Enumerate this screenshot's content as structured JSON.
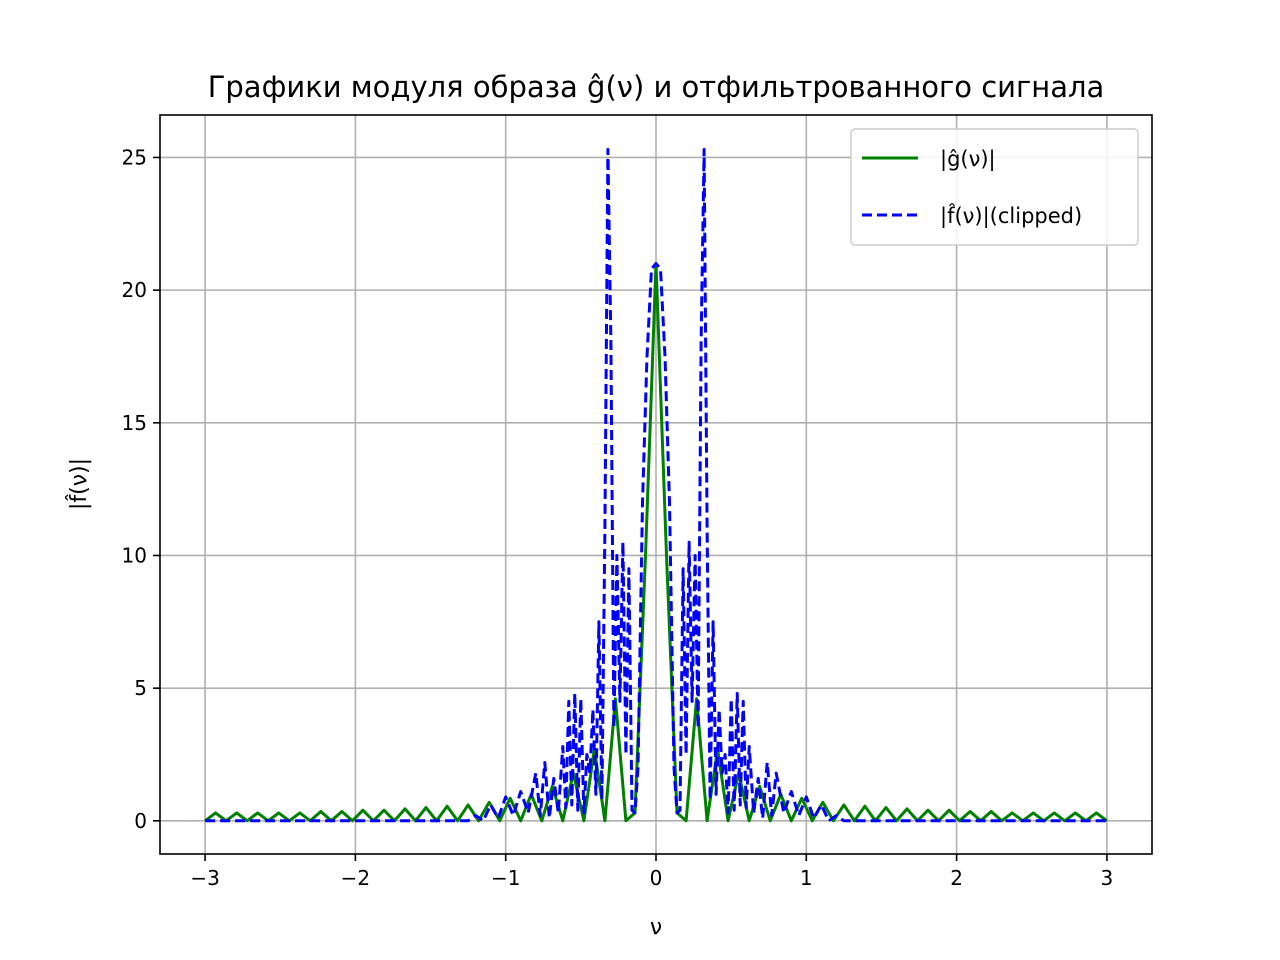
{
  "chart_data": {
    "type": "line",
    "title": "Графики модуля образа ĝ(ν) и отфильтрованного сигнала",
    "xlabel": "ν",
    "ylabel": "|f̂(ν)|",
    "xlim": [
      -3.3,
      3.3
    ],
    "ylim": [
      -1.25,
      26.6
    ],
    "xticks": [
      -3,
      -2,
      -1,
      0,
      1,
      2,
      3
    ],
    "xtick_labels": [
      "−3",
      "−2",
      "−1",
      "0",
      "1",
      "2",
      "3"
    ],
    "yticks": [
      0,
      5,
      10,
      15,
      20,
      25
    ],
    "ytick_labels": [
      "0",
      "5",
      "10",
      "15",
      "20",
      "25"
    ],
    "grid": true,
    "legend_position": "top-right",
    "series": [
      {
        "name": "|ĝ(ν)|",
        "color": "#008000",
        "style": "solid",
        "x": [
          -3.0,
          -2.93,
          -2.86,
          -2.79,
          -2.72,
          -2.65,
          -2.58,
          -2.51,
          -2.44,
          -2.37,
          -2.3,
          -2.23,
          -2.16,
          -2.09,
          -2.02,
          -1.95,
          -1.88,
          -1.81,
          -1.74,
          -1.67,
          -1.6,
          -1.53,
          -1.46,
          -1.39,
          -1.32,
          -1.25,
          -1.18,
          -1.11,
          -1.04,
          -0.97,
          -0.9,
          -0.83,
          -0.76,
          -0.69,
          -0.62,
          -0.55,
          -0.48,
          -0.41,
          -0.34,
          -0.27,
          -0.2,
          -0.14,
          -0.07,
          0.0,
          0.07,
          0.14,
          0.2,
          0.27,
          0.34,
          0.41,
          0.48,
          0.55,
          0.62,
          0.69,
          0.76,
          0.83,
          0.9,
          0.97,
          1.04,
          1.11,
          1.18,
          1.25,
          1.32,
          1.39,
          1.46,
          1.53,
          1.6,
          1.67,
          1.74,
          1.81,
          1.88,
          1.95,
          2.02,
          2.09,
          2.16,
          2.23,
          2.3,
          2.37,
          2.44,
          2.51,
          2.58,
          2.65,
          2.72,
          2.79,
          2.86,
          2.93,
          3.0
        ],
        "y": [
          0.0,
          0.3,
          0.0,
          0.3,
          0.0,
          0.3,
          0.0,
          0.3,
          0.0,
          0.3,
          0.0,
          0.35,
          0.0,
          0.35,
          0.0,
          0.4,
          0.0,
          0.4,
          0.0,
          0.45,
          0.0,
          0.5,
          0.0,
          0.55,
          0.0,
          0.6,
          0.0,
          0.7,
          0.0,
          0.85,
          0.0,
          1.0,
          0.0,
          1.3,
          0.0,
          1.8,
          0.0,
          2.7,
          0.0,
          4.6,
          0.0,
          0.3,
          10.0,
          21.0,
          10.0,
          0.3,
          0.0,
          4.6,
          0.0,
          2.7,
          0.0,
          1.8,
          0.0,
          1.3,
          0.0,
          1.0,
          0.0,
          0.85,
          0.0,
          0.7,
          0.0,
          0.6,
          0.0,
          0.55,
          0.0,
          0.5,
          0.0,
          0.45,
          0.0,
          0.4,
          0.0,
          0.4,
          0.0,
          0.35,
          0.0,
          0.35,
          0.0,
          0.3,
          0.0,
          0.3,
          0.0,
          0.3,
          0.0,
          0.3,
          0.0,
          0.3,
          0.0
        ]
      },
      {
        "name": "|f̂(ν)|(clipped)",
        "color": "#0000ff",
        "style": "dashed",
        "x": [
          -3.0,
          -1.25,
          -1.2,
          -1.15,
          -1.1,
          -1.05,
          -1.0,
          -0.95,
          -0.9,
          -0.85,
          -0.8,
          -0.77,
          -0.74,
          -0.71,
          -0.68,
          -0.65,
          -0.62,
          -0.6,
          -0.58,
          -0.56,
          -0.54,
          -0.52,
          -0.5,
          -0.48,
          -0.46,
          -0.44,
          -0.42,
          -0.4,
          -0.38,
          -0.36,
          -0.34,
          -0.32,
          -0.3,
          -0.28,
          -0.26,
          -0.24,
          -0.22,
          -0.2,
          -0.18,
          -0.16,
          -0.14,
          -0.12,
          -0.09,
          -0.06,
          -0.03,
          0.0,
          0.03,
          0.06,
          0.09,
          0.12,
          0.14,
          0.16,
          0.18,
          0.2,
          0.22,
          0.24,
          0.26,
          0.28,
          0.3,
          0.32,
          0.34,
          0.36,
          0.38,
          0.4,
          0.42,
          0.44,
          0.46,
          0.48,
          0.5,
          0.52,
          0.54,
          0.56,
          0.58,
          0.6,
          0.62,
          0.65,
          0.68,
          0.71,
          0.74,
          0.77,
          0.8,
          0.85,
          0.9,
          0.95,
          1.0,
          1.05,
          1.1,
          1.15,
          1.2,
          1.25,
          3.0
        ],
        "y": [
          0.0,
          0.0,
          0.2,
          0.0,
          0.6,
          0.1,
          0.9,
          0.2,
          1.1,
          0.3,
          1.8,
          0.2,
          2.2,
          0.1,
          1.6,
          0.3,
          2.8,
          0.5,
          4.5,
          0.6,
          4.8,
          0.4,
          4.6,
          0.3,
          2.5,
          1.8,
          4.2,
          1.0,
          7.5,
          0.8,
          11.0,
          25.3,
          18.0,
          3.5,
          10.0,
          4.5,
          10.5,
          2.5,
          9.5,
          0.4,
          0.3,
          2.0,
          12.0,
          17.5,
          20.8,
          21.0,
          20.8,
          17.5,
          12.0,
          2.0,
          0.3,
          0.4,
          9.5,
          2.5,
          10.5,
          4.5,
          10.0,
          3.5,
          18.0,
          25.3,
          11.0,
          0.8,
          7.5,
          1.0,
          4.2,
          1.8,
          2.5,
          0.3,
          4.6,
          0.4,
          4.8,
          0.6,
          4.5,
          0.5,
          2.8,
          0.3,
          1.6,
          0.1,
          2.2,
          0.2,
          1.8,
          0.3,
          1.1,
          0.2,
          0.9,
          0.1,
          0.6,
          0.0,
          0.2,
          0.0,
          0.0
        ]
      }
    ]
  }
}
